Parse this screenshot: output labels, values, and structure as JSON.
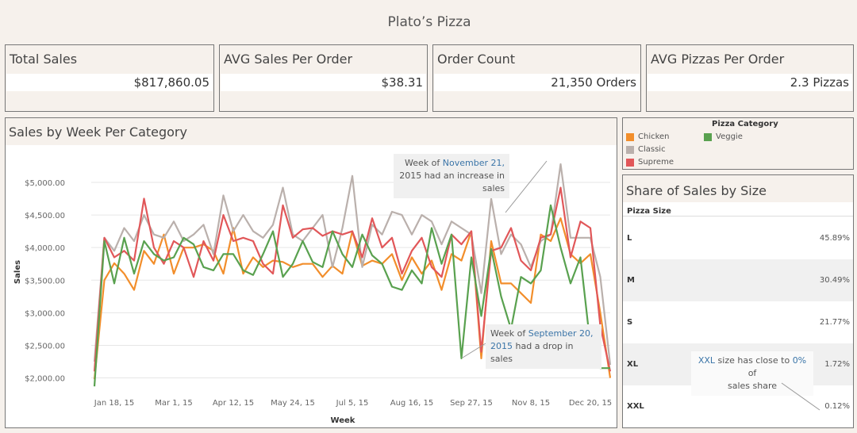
{
  "dashboard": {
    "title": "Plato’s Pizza"
  },
  "kpis": [
    {
      "label": "Total Sales",
      "value": "$817,860.05"
    },
    {
      "label": "AVG Sales Per Order",
      "value": "$38.31"
    },
    {
      "label": "Order Count",
      "value": "21,350 Orders"
    },
    {
      "label": "AVG Pizzas Per Order",
      "value": "2.3 Pizzas"
    }
  ],
  "legend": {
    "title": "Pizza Category",
    "items": [
      {
        "name": "Chicken",
        "color": "#f28e2b"
      },
      {
        "name": "Classic",
        "color": "#bab0ac"
      },
      {
        "name": "Supreme",
        "color": "#e15759"
      },
      {
        "name": "Veggie",
        "color": "#59a14f"
      }
    ]
  },
  "line_panel": {
    "title": "Sales by Week Per Category",
    "annotation_top": {
      "prefix": "Week of ",
      "date": "November 21,",
      "rest": "2015 had an increase in sales"
    },
    "annotation_bottom": {
      "prefix": "Week of ",
      "date": "September 20,",
      "date2": "2015",
      "rest": " had a drop in sales"
    }
  },
  "size_panel": {
    "title": "Share of Sales by Size",
    "column_header": "Pizza Size",
    "rows": [
      {
        "size": "L",
        "share": "45.89%"
      },
      {
        "size": "M",
        "share": "30.49%"
      },
      {
        "size": "S",
        "share": "21.77%"
      },
      {
        "size": "XL",
        "share": "1.72%"
      },
      {
        "size": "XXL",
        "share": "0.12%"
      }
    ],
    "annotation": {
      "a": "XXL",
      "b": " size has close to ",
      "c": "0%",
      "d": " of",
      "e": "sales share"
    }
  },
  "chart_data": {
    "type": "line",
    "xlabel": "Week",
    "ylabel": "Sales",
    "ylim": [
      1800,
      5450
    ],
    "y_ticks": [
      "$2,000.00",
      "$2,500.00",
      "$3,000.00",
      "$3,500.00",
      "$4,000.00",
      "$4,500.00",
      "$5,000.00"
    ],
    "y_tick_values": [
      2000,
      2500,
      3000,
      3500,
      4000,
      4500,
      5000
    ],
    "x_tick_labels": [
      "Jan 18, 15",
      "Mar 1, 15",
      "Apr 12, 15",
      "May 24, 15",
      "Jul 5, 15",
      "Aug 16, 15",
      "Sep 27, 15",
      "Nov 8, 15",
      "Dec 20, 15"
    ],
    "x_tick_week_index": [
      2,
      8,
      14,
      20,
      26,
      32,
      38,
      44,
      50
    ],
    "weeks": 53,
    "series": [
      {
        "name": "Chicken",
        "color": "#f28e2b",
        "values": [
          1980,
          3500,
          3760,
          3600,
          3350,
          3950,
          3750,
          4200,
          3600,
          4000,
          4000,
          4050,
          3950,
          3600,
          4300,
          3600,
          3850,
          3700,
          3800,
          3780,
          3700,
          3750,
          3750,
          3550,
          3720,
          3600,
          4250,
          3720,
          3800,
          3750,
          3900,
          3500,
          3850,
          3600,
          3800,
          3350,
          3900,
          3800,
          4250,
          2300,
          4100,
          3450,
          3450,
          3300,
          3150,
          4200,
          4100,
          4450,
          3900,
          3760,
          3900,
          3000,
          2000
        ]
      },
      {
        "name": "Classic",
        "color": "#bab0ac",
        "values": [
          2250,
          4150,
          3950,
          4300,
          4100,
          4500,
          4200,
          4150,
          4400,
          4100,
          4200,
          4350,
          3900,
          4800,
          4250,
          4500,
          4250,
          4150,
          4350,
          4920,
          4200,
          4100,
          4300,
          4500,
          3700,
          4300,
          5100,
          3700,
          4350,
          4200,
          4550,
          4500,
          4200,
          4500,
          4400,
          4050,
          4400,
          4300,
          4200,
          3300,
          4750,
          3900,
          4200,
          4050,
          3700,
          4100,
          4200,
          5280,
          4150,
          4150,
          4150,
          3550,
          2200
        ]
      },
      {
        "name": "Supreme",
        "color": "#e15759",
        "values": [
          2100,
          4150,
          3850,
          3950,
          3800,
          4750,
          4000,
          3750,
          4100,
          4000,
          3550,
          4100,
          3800,
          4500,
          4100,
          4150,
          4100,
          3750,
          3600,
          4650,
          4150,
          4280,
          4300,
          4180,
          4250,
          4200,
          4250,
          3850,
          4450,
          4000,
          4150,
          3600,
          3950,
          4150,
          3700,
          3550,
          4200,
          4050,
          4250,
          2400,
          3950,
          4000,
          4300,
          3800,
          3650,
          4150,
          4200,
          4920,
          3850,
          4400,
          4300,
          2800,
          2100
        ]
      },
      {
        "name": "Veggie",
        "color": "#59a14f",
        "values": [
          1870,
          4100,
          3450,
          4150,
          3600,
          4100,
          3900,
          3800,
          3850,
          4150,
          4050,
          3700,
          3650,
          3900,
          3900,
          3650,
          3580,
          3900,
          4250,
          3550,
          3750,
          4100,
          3780,
          3700,
          4250,
          3900,
          3700,
          4200,
          3880,
          3750,
          3400,
          3350,
          3650,
          3450,
          4300,
          3750,
          4200,
          2300,
          3850,
          2950,
          3980,
          3250,
          2750,
          3550,
          3450,
          3650,
          4650,
          4000,
          3450,
          3850,
          2500,
          2150,
          2150
        ]
      }
    ]
  }
}
